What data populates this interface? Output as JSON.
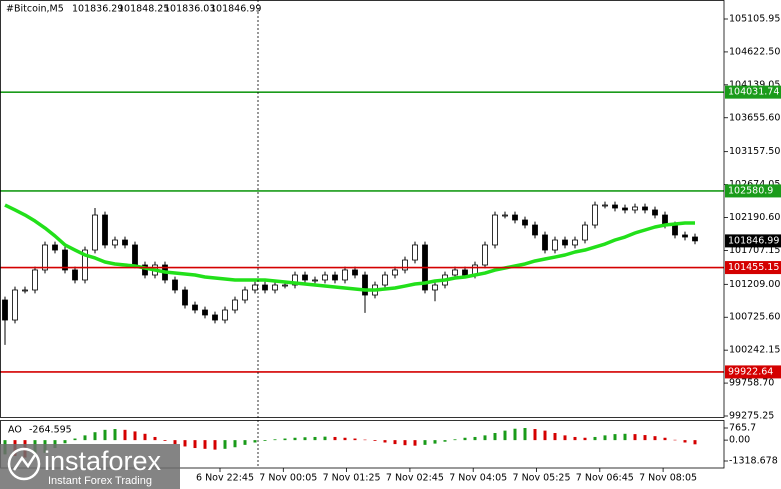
{
  "chart_data": [
    {
      "type": "candlestick",
      "title": "#Bitcoin,M5",
      "header_values": [
        101836.29,
        101848.25,
        101836.03,
        101846.99
      ],
      "ylim": [
        99260.56,
        105385.0
      ],
      "yticks": [
        105105.95,
        {
          "value": 104622.5,
          "label": "104622.50"
        },
        104139.05,
        {
          "value": 103655.6,
          "label": "103655.60"
        },
        {
          "value": 103157.5,
          "label": "103157.50"
        },
        102674.05,
        {
          "value": 102190.6,
          "label": "102190.60"
        },
        101707.15,
        {
          "value": 101209.0,
          "label": "101209.00"
        },
        {
          "value": 100725.6,
          "label": "100725.60"
        },
        100242.15,
        {
          "value": 99758.7,
          "label": "99758.70"
        },
        99275.25
      ],
      "x_labels": [
        "6 Nov 22:45",
        "7 Nov 00:05",
        "7 Nov 01:25",
        "7 Nov 02:45",
        "7 Nov 04:05",
        "7 Nov 05:25",
        "7 Nov 06:45",
        "7 Nov 08:05"
      ],
      "up_color": "#ffffff",
      "down_color": "#000000",
      "open": [
        100979,
        100685,
        101126,
        101126,
        101420,
        101787,
        101713,
        101420,
        101273,
        101713,
        102227,
        101787,
        101860,
        101787,
        101493,
        101346,
        101493,
        101273,
        101126,
        100905,
        100832,
        100759,
        100685,
        100832,
        100979,
        101126,
        101199,
        101126,
        101199,
        101199,
        101346,
        101273,
        101273,
        101346,
        101273,
        101420,
        101346,
        101052,
        101199,
        101346,
        101420,
        101566,
        101787,
        101126,
        101199,
        101346,
        101420,
        101346,
        101493,
        101787,
        102227,
        102227,
        102154,
        102080,
        101934,
        101713,
        101860,
        101787,
        101860,
        102080,
        102374,
        102374,
        102330,
        102301,
        102345,
        102301,
        102227,
        102080,
        101934,
        101904
      ],
      "high": [
        101029,
        101176,
        101176,
        101470,
        101837,
        101837,
        101763,
        101470,
        101763,
        102330,
        102277,
        101910,
        101910,
        101837,
        101543,
        101543,
        101543,
        101323,
        101176,
        100955,
        100882,
        100809,
        100882,
        101029,
        101176,
        101249,
        101249,
        101249,
        101249,
        101396,
        101396,
        101323,
        101396,
        101396,
        101470,
        101470,
        101396,
        101249,
        101396,
        101470,
        101616,
        101837,
        101837,
        101249,
        101396,
        101470,
        101470,
        101543,
        101837,
        102277,
        102277,
        102277,
        102204,
        102130,
        101984,
        101910,
        101910,
        101910,
        102130,
        102424,
        102424,
        102424,
        102380,
        102395,
        102395,
        102351,
        102277,
        102130,
        101984,
        101954
      ],
      "low": [
        100320,
        100635,
        101076,
        101076,
        101370,
        101663,
        101370,
        101223,
        101223,
        101663,
        101737,
        101737,
        101737,
        101443,
        101296,
        101296,
        101223,
        101076,
        100855,
        100782,
        100709,
        100635,
        100635,
        100782,
        100929,
        101076,
        101076,
        101076,
        101149,
        101149,
        101223,
        101223,
        101223,
        101223,
        101223,
        101296,
        100790,
        101002,
        101149,
        101296,
        101370,
        101516,
        101076,
        100960,
        101149,
        101296,
        101296,
        101296,
        101443,
        101737,
        102177,
        102104,
        102030,
        101884,
        101663,
        101663,
        101737,
        101737,
        101810,
        102030,
        102324,
        102280,
        102251,
        102251,
        102251,
        102177,
        102030,
        101884,
        101854,
        101797
      ],
      "close": [
        100685,
        101126,
        101126,
        101420,
        101787,
        101713,
        101420,
        101273,
        101713,
        102227,
        101787,
        101860,
        101787,
        101493,
        101346,
        101493,
        101273,
        101126,
        100905,
        100832,
        100759,
        100685,
        100832,
        100979,
        101126,
        101199,
        101126,
        101199,
        101199,
        101346,
        101273,
        101273,
        101346,
        101273,
        101420,
        101346,
        101052,
        101199,
        101346,
        101420,
        101566,
        101787,
        101126,
        101199,
        101346,
        101420,
        101346,
        101493,
        101787,
        102227,
        102227,
        102154,
        102080,
        101934,
        101713,
        101860,
        101787,
        101860,
        102080,
        102374,
        102374,
        102330,
        102301,
        102345,
        102301,
        102227,
        102080,
        101934,
        101904,
        101847
      ],
      "series": [
        {
          "color": "#22e01a",
          "values": [
            102374,
            102301,
            102227,
            102139,
            102036,
            101919,
            101787,
            101713,
            101640,
            101596,
            101537,
            101508,
            101493,
            101478,
            101449,
            101419,
            101390,
            101375,
            101361,
            101346,
            101317,
            101302,
            101287,
            101273,
            101273,
            101273,
            101273,
            101258,
            101243,
            101229,
            101214,
            101199,
            101184,
            101170,
            101155,
            101140,
            101126,
            101126,
            101140,
            101155,
            101184,
            101214,
            101229,
            101258,
            101273,
            101302,
            101317,
            101346,
            101375,
            101419,
            101449,
            101478,
            101508,
            101552,
            101581,
            101610,
            101640,
            101684,
            101713,
            101757,
            101801,
            101860,
            101904,
            101963,
            102007,
            102051,
            102080,
            102095,
            102110,
            102110
          ]
        }
      ],
      "levels": [
        {
          "value": 104031.74,
          "color": "#1a9b1a"
        },
        {
          "value": 102580.9,
          "color": "#1a9b1a"
        },
        {
          "value": 101455.15,
          "color": "#d40000"
        },
        {
          "value": 99922.64,
          "color": "#d40000"
        }
      ],
      "current_price": 101846.99,
      "current_color": "#000000"
    },
    {
      "type": "bar",
      "title": "AO",
      "current": -264.595,
      "ylim": [
        -1318.678,
        765.7
      ],
      "yticks": [
        765.7,
        {
          "value": 0,
          "label": "0.00"
        },
        -1318.678
      ],
      "up_color": "#1a9b1a",
      "down_color": "#d40000",
      "values": [
        -900,
        -1000,
        -1100,
        -1000,
        -800,
        -500,
        -200,
        100,
        300,
        500,
        650,
        700,
        650,
        550,
        400,
        200,
        -50,
        -250,
        -400,
        -500,
        -550,
        -600,
        -550,
        -450,
        -300,
        -150,
        -50,
        50,
        100,
        150,
        180,
        200,
        220,
        200,
        150,
        100,
        30,
        -50,
        -150,
        -250,
        -320,
        -350,
        -300,
        -220,
        -100,
        50,
        150,
        200,
        300,
        450,
        600,
        720,
        765,
        700,
        600,
        450,
        300,
        200,
        150,
        200,
        300,
        380,
        400,
        380,
        320,
        250,
        150,
        20,
        -150,
        -264.595
      ]
    }
  ],
  "watermark": {
    "brand": "instaforex",
    "tagline": "Instant Forex Trading"
  }
}
